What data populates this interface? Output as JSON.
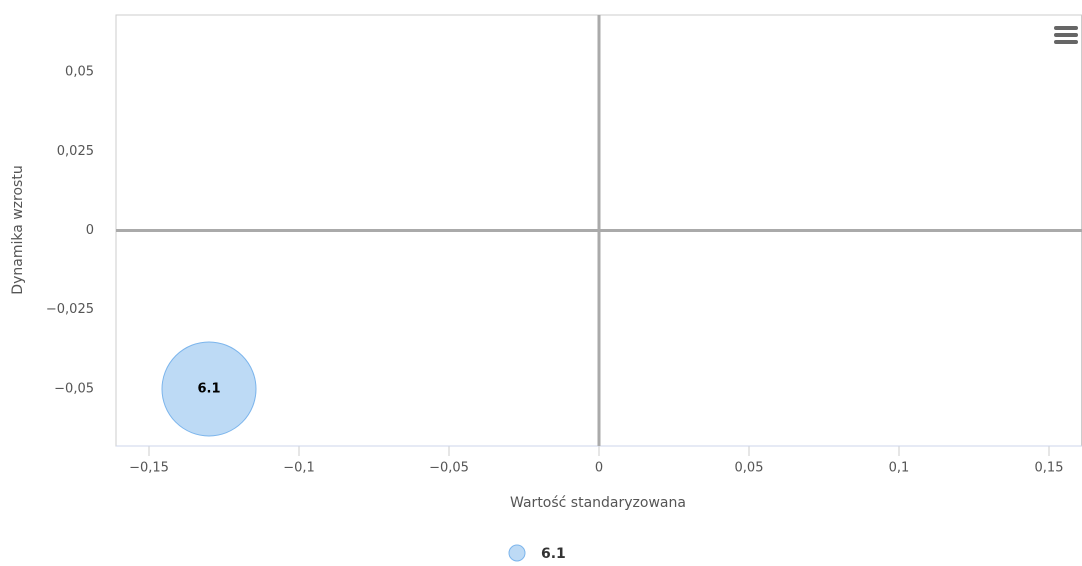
{
  "chart_data": {
    "type": "bubble",
    "x_label": "Wartość standaryzowana",
    "y_label": "Dynamika wzrostu",
    "series": [
      {
        "name": "6.1",
        "color": "#7cb5ec",
        "x": [
          -0.13
        ],
        "values": [
          -0.05
        ],
        "sizes": [
          1
        ],
        "labels": [
          "6.1"
        ]
      }
    ],
    "xlim": [
      -0.161,
      0.161
    ],
    "xticks": [
      {
        "value": -0.15,
        "label": "−0,15"
      },
      {
        "value": -0.1,
        "label": "−0,1"
      },
      {
        "value": -0.05,
        "label": "−0,05"
      },
      0,
      {
        "value": 0.05,
        "label": "0,05"
      },
      {
        "value": 0.1,
        "label": "0,1"
      },
      {
        "value": 0.15,
        "label": "0,15"
      }
    ],
    "ylim": [
      -0.068,
      0.068
    ],
    "yticks": [
      {
        "value": -0.05,
        "label": "−0,05"
      },
      {
        "value": -0.025,
        "label": "−0,025"
      },
      0,
      {
        "value": 0.025,
        "label": "0,025"
      },
      {
        "value": 0.05,
        "label": "0,05"
      }
    ],
    "x_plot_lines": [
      0
    ],
    "y_plot_lines": [
      0
    ],
    "legend": "bottom"
  }
}
